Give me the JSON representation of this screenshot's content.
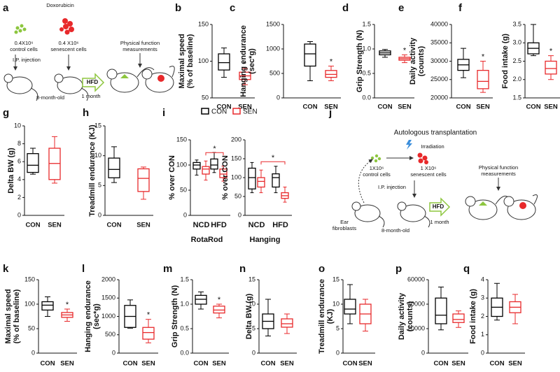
{
  "diagrams": {
    "a": {
      "panel": "a",
      "drug": "Doxorubicin",
      "control_label": [
        "0.4X10⁶",
        "control cells"
      ],
      "senescent_label": [
        "0.4 X10⁶",
        "senescent cells"
      ],
      "injection": "I.P. injection",
      "measure": [
        "Physical function",
        "measurements"
      ],
      "diet": "HFD",
      "duration": "1 month",
      "age": "8-month-old"
    },
    "j": {
      "panel": "j",
      "title": "Autologous transplantation",
      "treatment": "Irradiation",
      "control_label": [
        "1X10⁶",
        "control cells"
      ],
      "senescent_label": [
        "1 X10⁶",
        "senescent cells"
      ],
      "injection": "I.P. injection",
      "measure": [
        "Physical function",
        "measurements"
      ],
      "source": [
        "Ear",
        "fibroblasts"
      ],
      "age": "8-month-old",
      "diet": "HFD",
      "duration": "1 month"
    }
  },
  "chart_data": [
    {
      "type": "box",
      "panel": "b",
      "ylabel": [
        "Maximal speed",
        "(% of baseline)"
      ],
      "categories": [
        "CON",
        "SEN"
      ],
      "colors": [
        "#000000",
        "#e8292b"
      ],
      "ylim": [
        50,
        150
      ],
      "yticks": [
        50,
        100,
        150
      ],
      "boxes": [
        {
          "min": 78,
          "q1": 88,
          "median": 98,
          "q3": 110,
          "max": 118
        },
        {
          "min": 68,
          "q1": 75,
          "median": 80,
          "q3": 85,
          "max": 90,
          "label": "*"
        }
      ]
    },
    {
      "type": "box",
      "panel": "c",
      "ylabel": [
        "Hanging endurance",
        "(sec*g)"
      ],
      "categories": [
        "CON",
        "SEN"
      ],
      "colors": [
        "#000000",
        "#e8292b"
      ],
      "ylim": [
        0,
        1500
      ],
      "yticks": [
        0,
        500,
        1000,
        1500
      ],
      "boxes": [
        {
          "min": 350,
          "q1": 650,
          "median": 900,
          "q3": 1100,
          "max": 1150
        },
        {
          "min": 350,
          "q1": 420,
          "median": 480,
          "q3": 560,
          "max": 650,
          "label": "*"
        }
      ]
    },
    {
      "type": "box",
      "panel": "d",
      "ylabel": [
        "Grip Strength (N)"
      ],
      "categories": [
        "CON",
        "SEN"
      ],
      "colors": [
        "#000000",
        "#e8292b"
      ],
      "ylim": [
        0,
        1.5
      ],
      "yticks": [
        {
          "value": 0,
          "label": "0.0"
        },
        {
          "value": 0.5,
          "label": "0.5"
        },
        {
          "value": 1,
          "label": "1.0"
        },
        {
          "value": 1.5,
          "label": "1.5"
        }
      ],
      "boxes": [
        {
          "min": 0.83,
          "q1": 0.88,
          "median": 0.92,
          "q3": 0.96,
          "max": 0.99
        },
        {
          "min": 0.72,
          "q1": 0.77,
          "median": 0.8,
          "q3": 0.83,
          "max": 0.88,
          "label": "*"
        }
      ]
    },
    {
      "type": "box",
      "panel": "e",
      "ylabel": [
        "Daily activity",
        "(counts)"
      ],
      "categories": [
        "CON",
        "SEN"
      ],
      "colors": [
        "#000000",
        "#e8292b"
      ],
      "ylim": [
        20000,
        40000
      ],
      "yticks": [
        20000,
        25000,
        30000,
        35000,
        40000
      ],
      "boxes": [
        {
          "min": 25500,
          "q1": 27500,
          "median": 29000,
          "q3": 30500,
          "max": 33500
        },
        {
          "min": 21500,
          "q1": 22500,
          "median": 24500,
          "q3": 27500,
          "max": 30000,
          "label": "*"
        }
      ]
    },
    {
      "type": "box",
      "panel": "f",
      "ylabel": [
        "Food intake (g)"
      ],
      "categories": [
        "CON",
        "SEN"
      ],
      "colors": [
        "#000000",
        "#e8292b"
      ],
      "ylim": [
        1.5,
        3.5
      ],
      "yticks": [
        1.5,
        {
          "value": 2,
          "label": "2.0"
        },
        2.5,
        {
          "value": 3,
          "label": "3.0"
        },
        3.5
      ],
      "boxes": [
        {
          "min": 2.65,
          "q1": 2.7,
          "median": 2.85,
          "q3": 3.0,
          "max": 3.5
        },
        {
          "min": 2.0,
          "q1": 2.15,
          "median": 2.3,
          "q3": 2.5,
          "max": 2.65,
          "label": "*"
        }
      ]
    },
    {
      "type": "box",
      "panel": "g",
      "ylabel": [
        "Delta BW (g)"
      ],
      "categories": [
        "CON",
        "SEN"
      ],
      "colors": [
        "#000000",
        "#e8292b"
      ],
      "ylim": [
        0,
        10
      ],
      "yticks": [
        0,
        2,
        4,
        6,
        8,
        10
      ],
      "boxes": [
        {
          "min": 4.6,
          "q1": 4.8,
          "median": 5.6,
          "q3": 6.9,
          "max": 7.5
        },
        {
          "min": 3.6,
          "q1": 4.0,
          "median": 5.8,
          "q3": 7.5,
          "max": 8.8
        }
      ]
    },
    {
      "type": "box",
      "panel": "h",
      "ylabel": [
        "Treadmill endurance (KJ)"
      ],
      "categories": [
        "CON",
        "SEN"
      ],
      "colors": [
        "#000000",
        "#e8292b"
      ],
      "ylim": [
        0,
        15
      ],
      "yticks": [
        0,
        5,
        10,
        15
      ],
      "boxes": [
        {
          "min": 5.5,
          "q1": 6.3,
          "median": 7.7,
          "q3": 9.6,
          "max": 11.5
        },
        {
          "min": 2.7,
          "q1": 4.0,
          "median": 6.2,
          "q3": 7.8,
          "max": 8.1
        }
      ]
    },
    {
      "type": "grouped-box",
      "panel": "i",
      "ylabel": "% over CON",
      "categories": [
        "NCD",
        "HFD"
      ],
      "series": [
        {
          "name": "CON",
          "color": "#000000"
        },
        {
          "name": "SEN",
          "color": "#e8292b"
        }
      ],
      "subplots": [
        {
          "xlabel": "RotaRod",
          "ylim": [
            0,
            150
          ],
          "yticks": [
            0,
            50,
            100,
            150
          ],
          "comparison_label": "*",
          "boxes": [
            [
              {
                "min": 80,
                "q1": 92,
                "median": 100,
                "q3": 105,
                "max": 110
              },
              {
                "min": 70,
                "q1": 82,
                "median": 92,
                "q3": 97,
                "max": 108
              }
            ],
            [
              {
                "min": 85,
                "q1": 92,
                "median": 100,
                "q3": 112,
                "max": 125
              },
              {
                "min": 68,
                "q1": 75,
                "median": 82,
                "q3": 92,
                "max": 98
              }
            ]
          ]
        },
        {
          "xlabel": "Hanging",
          "ylim": [
            0,
            200
          ],
          "yticks": [
            0,
            50,
            100,
            150,
            200
          ],
          "comparison_label": "*",
          "boxes": [
            [
              {
                "min": 60,
                "q1": 70,
                "median": 100,
                "q3": 125,
                "max": 140
              },
              {
                "min": 60,
                "q1": 75,
                "median": 90,
                "q3": 100,
                "max": 120
              }
            ],
            [
              {
                "min": 60,
                "q1": 75,
                "median": 100,
                "q3": 110,
                "max": 130
              },
              {
                "min": 35,
                "q1": 45,
                "median": 52,
                "q3": 60,
                "max": 75
              }
            ]
          ]
        }
      ]
    },
    {
      "type": "box",
      "panel": "k",
      "ylabel": [
        "Maximal speed",
        "(% of baseline)"
      ],
      "categories": [
        "CON",
        "SEN"
      ],
      "colors": [
        "#000000",
        "#e8292b"
      ],
      "ylim": [
        0,
        150
      ],
      "yticks": [
        0,
        50,
        100,
        150
      ],
      "boxes": [
        {
          "min": 75,
          "q1": 88,
          "median": 98,
          "q3": 105,
          "max": 115
        },
        {
          "min": 65,
          "q1": 73,
          "median": 78,
          "q3": 83,
          "max": 90,
          "label": "*"
        }
      ]
    },
    {
      "type": "box",
      "panel": "l",
      "ylabel": [
        "Hanging endurance",
        "(sec*g)"
      ],
      "categories": [
        "CON",
        "SEN"
      ],
      "colors": [
        "#000000",
        "#e8292b"
      ],
      "ylim": [
        0,
        2000
      ],
      "yticks": [
        0,
        500,
        1000,
        1500,
        2000
      ],
      "boxes": [
        {
          "min": 680,
          "q1": 700,
          "median": 1000,
          "q3": 1300,
          "max": 1450
        },
        {
          "min": 280,
          "q1": 380,
          "median": 560,
          "q3": 700,
          "max": 920,
          "label": "*"
        }
      ]
    },
    {
      "type": "box",
      "panel": "m",
      "ylabel": [
        "Grip Strength (N)"
      ],
      "categories": [
        "CON",
        "SEN"
      ],
      "colors": [
        "#000000",
        "#e8292b"
      ],
      "ylim": [
        0,
        1.5
      ],
      "yticks": [
        {
          "value": 0,
          "label": "0.0"
        },
        {
          "value": 0.5,
          "label": "0.5"
        },
        {
          "value": 1,
          "label": "1.0"
        },
        {
          "value": 1.5,
          "label": "1.5"
        }
      ],
      "boxes": [
        {
          "min": 0.9,
          "q1": 1.0,
          "median": 1.1,
          "q3": 1.18,
          "max": 1.25
        },
        {
          "min": 0.72,
          "q1": 0.82,
          "median": 0.88,
          "q3": 0.96,
          "max": 1.0,
          "label": "*"
        }
      ]
    },
    {
      "type": "box",
      "panel": "n",
      "ylabel": [
        "Delta BW (g)"
      ],
      "categories": [
        "CON",
        "SEN"
      ],
      "colors": [
        "#000000",
        "#e8292b"
      ],
      "ylim": [
        0,
        15
      ],
      "yticks": [
        0,
        5,
        10,
        15
      ],
      "boxes": [
        {
          "min": 3.5,
          "q1": 5,
          "median": 6.5,
          "q3": 8,
          "max": 11
        },
        {
          "min": 4,
          "q1": 5.3,
          "median": 6,
          "q3": 7,
          "max": 8
        }
      ]
    },
    {
      "type": "box",
      "panel": "o",
      "ylabel": [
        "Treadmill endurance",
        "(KJ)"
      ],
      "categories": [
        "CON",
        "SEN"
      ],
      "colors": [
        "#000000",
        "#e8292b"
      ],
      "ylim": [
        0,
        15
      ],
      "yticks": [
        0,
        5,
        10,
        15
      ],
      "boxes": [
        {
          "min": 6,
          "q1": 8,
          "median": 9,
          "q3": 11,
          "max": 14
        },
        {
          "min": 4.5,
          "q1": 6,
          "median": 8,
          "q3": 10,
          "max": 11
        }
      ]
    },
    {
      "type": "box",
      "panel": "p",
      "ylabel": [
        "Daily activity",
        "(counts)"
      ],
      "categories": [
        "CON",
        "SEN"
      ],
      "colors": [
        "#000000",
        "#e8292b"
      ],
      "ylim": [
        0,
        60000
      ],
      "yticks": [
        0,
        20000,
        40000,
        60000
      ],
      "boxes": [
        {
          "min": 19000,
          "q1": 24000,
          "median": 31000,
          "q3": 45000,
          "max": 54000
        },
        {
          "min": 21000,
          "q1": 25000,
          "median": 27500,
          "q3": 32000,
          "max": 34500
        }
      ]
    },
    {
      "type": "box",
      "panel": "q",
      "ylabel": [
        "Food intake (g)"
      ],
      "categories": [
        "CON",
        "SEN"
      ],
      "colors": [
        "#000000",
        "#e8292b"
      ],
      "ylim": [
        0,
        4
      ],
      "yticks": [
        0,
        1,
        2,
        3,
        4
      ],
      "boxes": [
        {
          "min": 1.8,
          "q1": 2.0,
          "median": 2.5,
          "q3": 3.0,
          "max": 3.8
        },
        {
          "min": 1.6,
          "q1": 2.2,
          "median": 2.5,
          "q3": 2.8,
          "max": 3.2
        }
      ]
    }
  ]
}
